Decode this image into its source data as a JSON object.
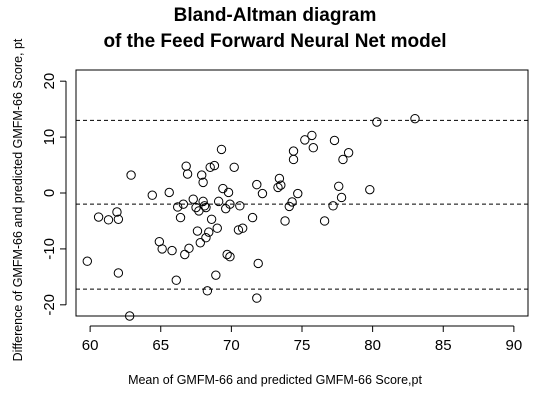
{
  "chart_data": {
    "type": "scatter",
    "title": [
      "Bland-Altman diagram",
      "of the Feed Forward Neural Net model"
    ],
    "xlabel": "Mean of GMFM-66 and predicted GMFM-66 Score,pt",
    "ylabel": "Difference of GMFM-66 and predicted GMFM-66 Score, pt",
    "xlim": [
      59,
      91
    ],
    "ylim": [
      -22,
      22
    ],
    "xticks": [
      60,
      65,
      70,
      75,
      80,
      85,
      90
    ],
    "yticks": [
      -20,
      -10,
      0,
      10,
      20
    ],
    "reference_lines": [
      {
        "y": 13,
        "style": "dashed"
      },
      {
        "y": -2,
        "style": "dashed"
      },
      {
        "y": -17.2,
        "style": "dashed"
      }
    ],
    "marker": "open-circle",
    "points": [
      {
        "x": 59.8,
        "y": -12.2
      },
      {
        "x": 60.6,
        "y": -4.3
      },
      {
        "x": 61.3,
        "y": -4.8
      },
      {
        "x": 61.9,
        "y": -3.4
      },
      {
        "x": 62.0,
        "y": -4.7
      },
      {
        "x": 62.0,
        "y": -14.3
      },
      {
        "x": 62.9,
        "y": 3.2
      },
      {
        "x": 62.8,
        "y": -22.0
      },
      {
        "x": 64.4,
        "y": -0.4
      },
      {
        "x": 64.9,
        "y": -8.7
      },
      {
        "x": 65.1,
        "y": -10.0
      },
      {
        "x": 65.6,
        "y": 0.1
      },
      {
        "x": 65.8,
        "y": -10.3
      },
      {
        "x": 66.1,
        "y": -15.6
      },
      {
        "x": 66.2,
        "y": -2.5
      },
      {
        "x": 66.4,
        "y": -4.4
      },
      {
        "x": 66.6,
        "y": -2.0
      },
      {
        "x": 66.7,
        "y": -11.0
      },
      {
        "x": 66.8,
        "y": 4.8
      },
      {
        "x": 66.9,
        "y": 3.4
      },
      {
        "x": 67.0,
        "y": -9.9
      },
      {
        "x": 67.3,
        "y": -1.1
      },
      {
        "x": 67.5,
        "y": -2.6
      },
      {
        "x": 67.6,
        "y": -6.8
      },
      {
        "x": 67.7,
        "y": -3.2
      },
      {
        "x": 67.8,
        "y": -8.9
      },
      {
        "x": 67.9,
        "y": 3.2
      },
      {
        "x": 68.0,
        "y": 1.9
      },
      {
        "x": 68.0,
        "y": -1.5
      },
      {
        "x": 68.1,
        "y": -2.3
      },
      {
        "x": 68.2,
        "y": -8.0
      },
      {
        "x": 68.2,
        "y": -2.6
      },
      {
        "x": 68.3,
        "y": -17.5
      },
      {
        "x": 68.4,
        "y": -7.0
      },
      {
        "x": 68.5,
        "y": 4.6
      },
      {
        "x": 68.6,
        "y": -4.7
      },
      {
        "x": 68.8,
        "y": 4.9
      },
      {
        "x": 68.9,
        "y": -14.7
      },
      {
        "x": 69.0,
        "y": -6.3
      },
      {
        "x": 69.1,
        "y": -1.5
      },
      {
        "x": 69.3,
        "y": 7.8
      },
      {
        "x": 69.4,
        "y": 0.8
      },
      {
        "x": 69.6,
        "y": -2.8
      },
      {
        "x": 69.7,
        "y": -11.0
      },
      {
        "x": 69.8,
        "y": 0.1
      },
      {
        "x": 69.9,
        "y": -11.4
      },
      {
        "x": 69.9,
        "y": -2.0
      },
      {
        "x": 70.2,
        "y": 4.6
      },
      {
        "x": 70.5,
        "y": -6.6
      },
      {
        "x": 70.6,
        "y": -2.3
      },
      {
        "x": 70.8,
        "y": -6.3
      },
      {
        "x": 71.5,
        "y": -4.4
      },
      {
        "x": 71.8,
        "y": 1.5
      },
      {
        "x": 71.9,
        "y": -12.6
      },
      {
        "x": 71.8,
        "y": -18.8
      },
      {
        "x": 72.2,
        "y": -0.1
      },
      {
        "x": 73.3,
        "y": 1.0
      },
      {
        "x": 73.4,
        "y": 2.6
      },
      {
        "x": 73.5,
        "y": 1.4
      },
      {
        "x": 73.8,
        "y": -5.0
      },
      {
        "x": 74.1,
        "y": -2.4
      },
      {
        "x": 74.3,
        "y": -1.6
      },
      {
        "x": 74.4,
        "y": 6.0
      },
      {
        "x": 74.4,
        "y": 7.5
      },
      {
        "x": 74.7,
        "y": -0.1
      },
      {
        "x": 75.2,
        "y": 9.5
      },
      {
        "x": 75.7,
        "y": 10.3
      },
      {
        "x": 75.8,
        "y": 8.1
      },
      {
        "x": 76.6,
        "y": -5.0
      },
      {
        "x": 77.2,
        "y": -2.3
      },
      {
        "x": 77.3,
        "y": 9.4
      },
      {
        "x": 77.6,
        "y": 1.2
      },
      {
        "x": 77.8,
        "y": -0.8
      },
      {
        "x": 77.9,
        "y": 6.0
      },
      {
        "x": 78.3,
        "y": 7.2
      },
      {
        "x": 79.8,
        "y": 0.6
      },
      {
        "x": 80.3,
        "y": 12.7
      },
      {
        "x": 83.0,
        "y": 13.3
      }
    ]
  }
}
